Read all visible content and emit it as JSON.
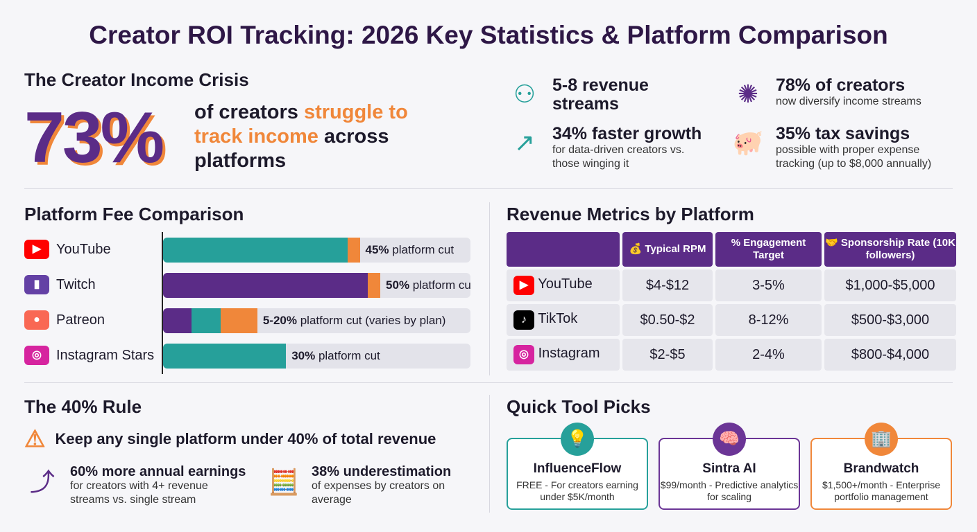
{
  "title": "Creator ROI Tracking: 2026 Key Statistics & Platform Comparison",
  "crisis": {
    "heading": "The Creator Income Crisis",
    "big": "73%",
    "text_a": "of creators ",
    "text_b": "struggle to track income",
    "text_c": " across platforms"
  },
  "stats": [
    {
      "icon": "people-network-icon",
      "title": "5-8 revenue streams",
      "sub": ""
    },
    {
      "icon": "person-network-icon",
      "title": "78% of creators",
      "sub": "now diversify income streams"
    },
    {
      "icon": "trend-up-arrow-icon",
      "title": "34% faster growth",
      "sub": "for data-driven creators vs. those winging it"
    },
    {
      "icon": "piggy-bank-icon",
      "title": "35% tax savings",
      "sub": "possible with proper expense tracking (up to $8,000 annually)"
    }
  ],
  "fees": {
    "heading": "Platform Fee Comparison"
  },
  "chart_data": {
    "type": "bar",
    "orientation": "horizontal",
    "categories": [
      "YouTube",
      "Twitch",
      "Patreon",
      "Instagram Stars"
    ],
    "labels": [
      {
        "bold": "45%",
        "rest": " platform cut"
      },
      {
        "bold": "50%",
        "rest": " platform cut"
      },
      {
        "bold": "5-20%",
        "rest": " platform cut (varies by plan)"
      },
      {
        "bold": "30%",
        "rest": " platform cut"
      }
    ],
    "values": [
      45,
      50,
      20,
      30
    ],
    "colors": {
      "teal": "#26a09a",
      "purple": "#5b2c87",
      "orange": "#f0873a"
    }
  },
  "metrics": {
    "heading": "Revenue Metrics by Platform",
    "columns": [
      "Typical RPM",
      "Engagement Target",
      "Sponsorship Rate (10K followers)"
    ],
    "rows": [
      [
        "YouTube",
        "$4-$12",
        "3-5%",
        "$1,000-$5,000"
      ],
      [
        "TikTok",
        "$0.50-$2",
        "8-12%",
        "$500-$3,000"
      ],
      [
        "Instagram",
        "$2-$5",
        "2-4%",
        "$800-$4,000"
      ]
    ]
  },
  "rule": {
    "heading": "The 40% Rule",
    "warning": "Keep any single platform under 40% of total revenue",
    "items": [
      {
        "title": "60% more annual earnings",
        "sub": "for creators with 4+ revenue streams vs. single stream"
      },
      {
        "title": "38% underestimation",
        "sub": "of expenses by creators on average"
      }
    ]
  },
  "tools": {
    "heading": "Quick Tool Picks",
    "items": [
      {
        "name": "InfluenceFlow",
        "desc": "FREE - For creators earning under $5K/month",
        "color": "#26a09a",
        "icon": "lightbulb-icon"
      },
      {
        "name": "Sintra AI",
        "desc": "$99/month - Predictive analytics for scaling",
        "color": "#6b3596",
        "icon": "brain-icon"
      },
      {
        "name": "Brandwatch",
        "desc": "$1,500+/month - Enterprise portfolio management",
        "color": "#f0873a",
        "icon": "building-icon"
      }
    ]
  }
}
